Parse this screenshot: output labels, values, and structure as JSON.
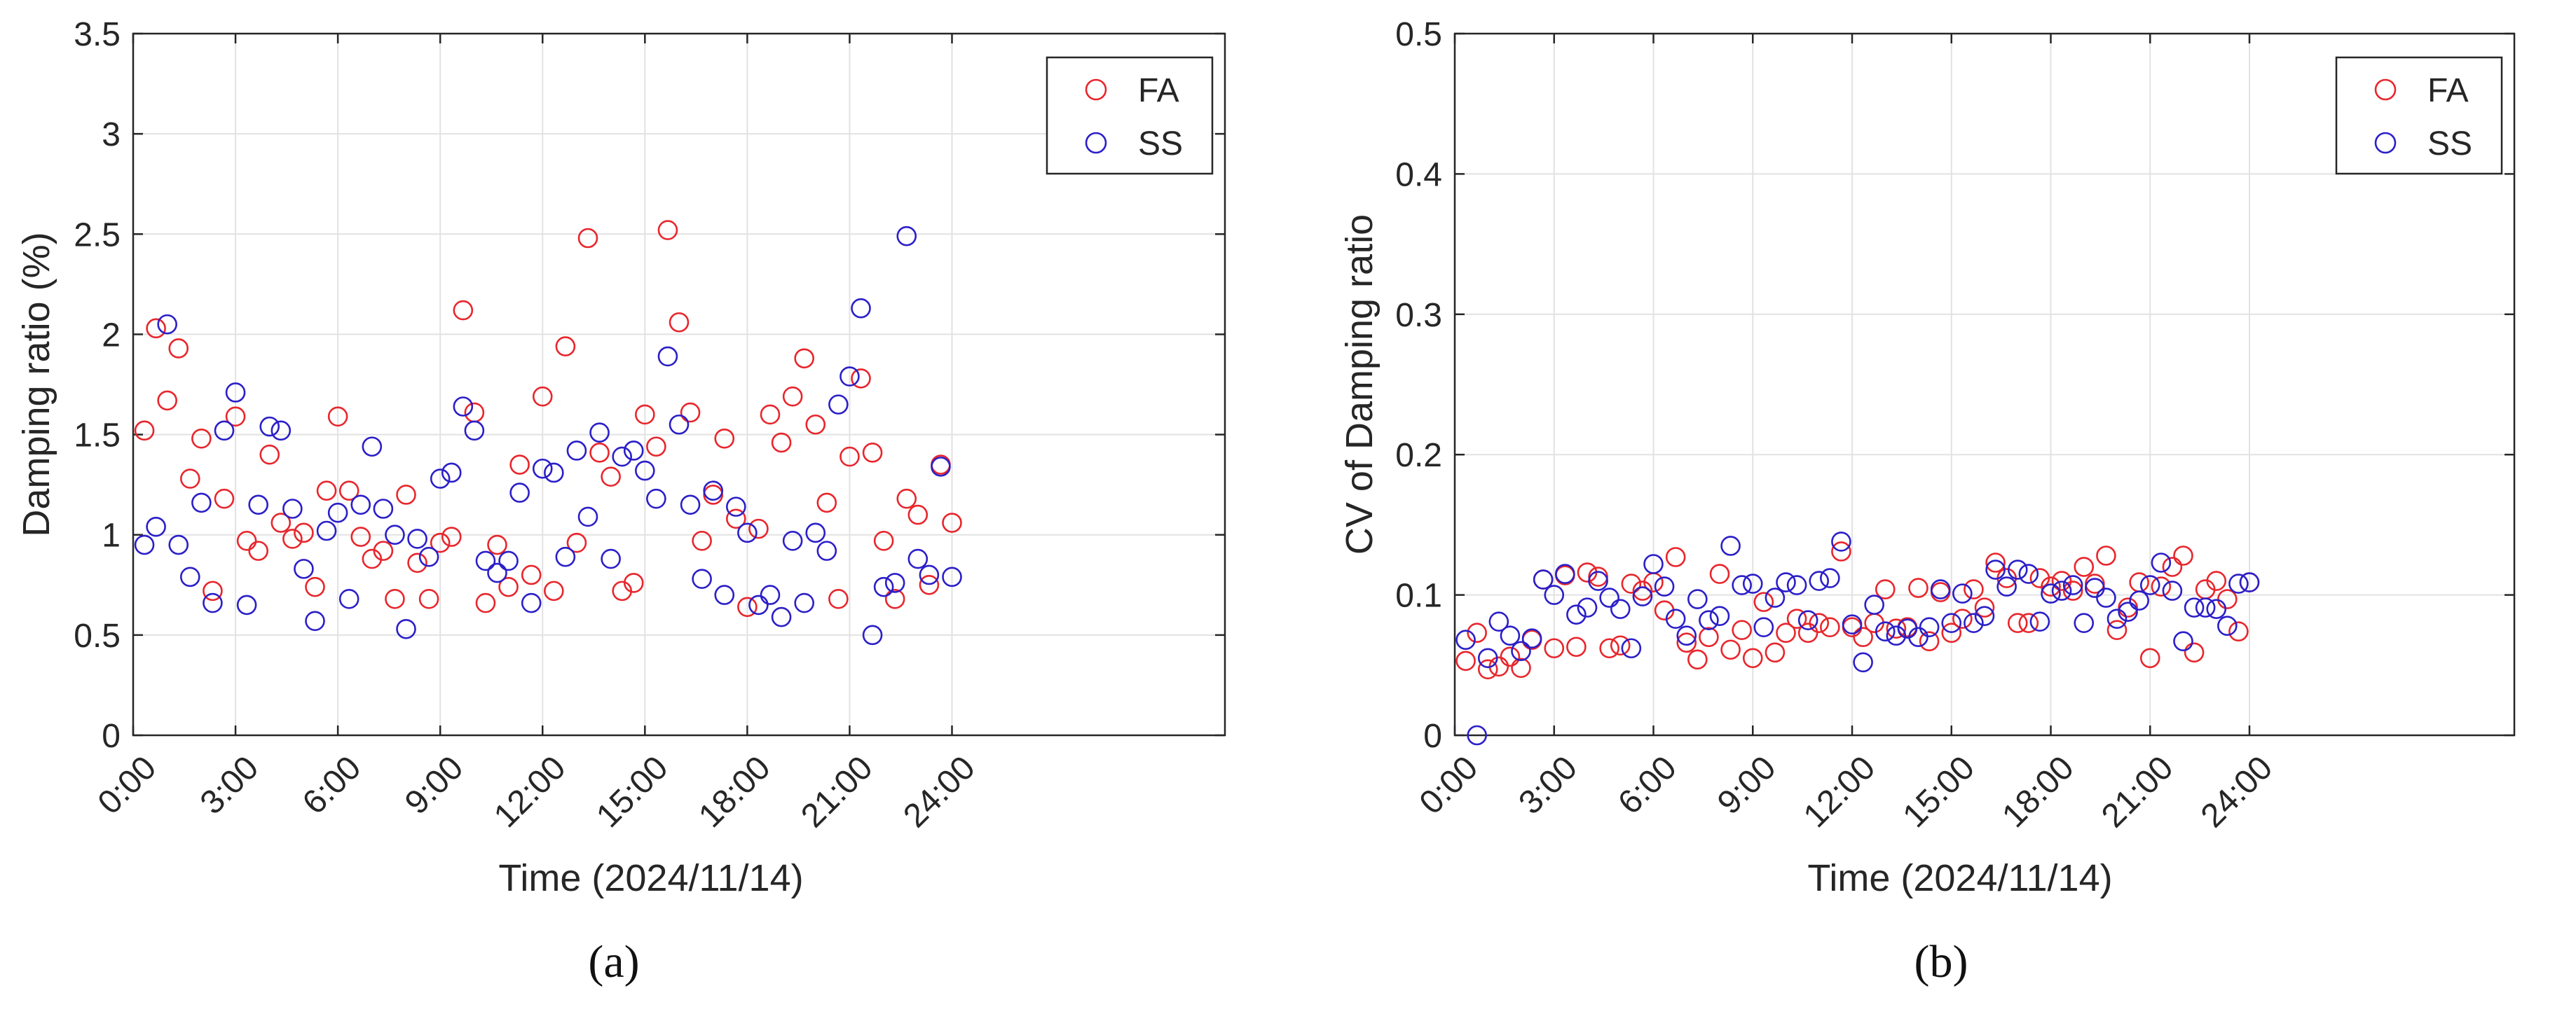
{
  "figure": {
    "colors": {
      "fa": "#e8262c",
      "ss": "#2b1fc8",
      "axis": "#262626",
      "grid": "#e2e2e2"
    }
  },
  "chart_data": [
    {
      "type": "scatter",
      "caption": "(a)",
      "xlabel": "Time (2024/11/14)",
      "ylabel": "Damping ratio (%)",
      "xlim": [
        0,
        32
      ],
      "ylim": [
        0,
        3.5
      ],
      "xticks": [
        0,
        3,
        6,
        9,
        12,
        15,
        18,
        21,
        24
      ],
      "xtick_labels": [
        "0:00",
        "3:00",
        "6:00",
        "9:00",
        "12:00",
        "15:00",
        "18:00",
        "21:00",
        "24:00"
      ],
      "yticks": [
        0,
        0.5,
        1,
        1.5,
        2,
        2.5,
        3,
        3.5
      ],
      "ytick_labels": [
        "0",
        "0.5",
        "1",
        "1.5",
        "2",
        "2.5",
        "3",
        "3.5"
      ],
      "grid": true,
      "legend_position": "top-right",
      "series": [
        {
          "name": "FA",
          "marker": "open-circle",
          "x": [
            0.33,
            0.67,
            1.0,
            1.33,
            1.67,
            2.0,
            2.33,
            2.67,
            3.0,
            3.33,
            3.67,
            4.0,
            4.33,
            4.67,
            5.0,
            5.33,
            5.67,
            6.0,
            6.33,
            6.67,
            7.0,
            7.33,
            7.67,
            8.0,
            8.33,
            8.67,
            9.0,
            9.33,
            9.67,
            10.0,
            10.33,
            10.67,
            11.0,
            11.33,
            11.67,
            12.0,
            12.33,
            12.67,
            13.0,
            13.33,
            13.67,
            14.0,
            14.33,
            14.67,
            15.0,
            15.33,
            15.67,
            16.0,
            16.33,
            16.67,
            17.0,
            17.33,
            17.67,
            18.0,
            18.33,
            18.67,
            19.0,
            19.33,
            19.67,
            20.0,
            20.33,
            20.67,
            21.0,
            21.33,
            21.67,
            22.0,
            22.33,
            22.67,
            23.0,
            23.33,
            23.67,
            24.0
          ],
          "y": [
            1.52,
            2.03,
            1.67,
            1.93,
            1.28,
            1.48,
            0.72,
            1.18,
            1.59,
            0.97,
            0.92,
            1.4,
            1.06,
            0.98,
            1.01,
            0.74,
            1.22,
            1.59,
            1.22,
            0.99,
            0.88,
            0.92,
            0.68,
            1.2,
            0.86,
            0.68,
            0.96,
            0.99,
            2.12,
            1.61,
            0.66,
            0.95,
            0.74,
            1.35,
            0.8,
            1.69,
            0.72,
            1.94,
            0.96,
            2.48,
            1.41,
            1.29,
            0.72,
            0.76,
            1.6,
            1.44,
            2.52,
            2.06,
            1.61,
            0.97,
            1.2,
            1.48,
            1.08,
            0.64,
            1.03,
            1.6,
            1.46,
            1.69,
            1.88,
            1.55,
            1.16,
            0.68,
            1.39,
            1.78,
            1.41,
            0.97,
            0.68,
            1.18,
            1.1,
            0.75,
            1.35,
            1.06
          ]
        },
        {
          "name": "SS",
          "marker": "open-circle",
          "x": [
            0.33,
            0.67,
            1.0,
            1.33,
            1.67,
            2.0,
            2.33,
            2.67,
            3.0,
            3.33,
            3.67,
            4.0,
            4.33,
            4.67,
            5.0,
            5.33,
            5.67,
            6.0,
            6.33,
            6.67,
            7.0,
            7.33,
            7.67,
            8.0,
            8.33,
            8.67,
            9.0,
            9.33,
            9.67,
            10.0,
            10.33,
            10.67,
            11.0,
            11.33,
            11.67,
            12.0,
            12.33,
            12.67,
            13.0,
            13.33,
            13.67,
            14.0,
            14.33,
            14.67,
            15.0,
            15.33,
            15.67,
            16.0,
            16.33,
            16.67,
            17.0,
            17.33,
            17.67,
            18.0,
            18.33,
            18.67,
            19.0,
            19.33,
            19.67,
            20.0,
            20.33,
            20.67,
            21.0,
            21.33,
            21.67,
            22.0,
            22.33,
            22.67,
            23.0,
            23.33,
            23.67,
            24.0
          ],
          "y": [
            0.95,
            1.04,
            2.05,
            0.95,
            0.79,
            1.16,
            0.66,
            1.52,
            1.71,
            0.65,
            1.15,
            1.54,
            1.52,
            1.13,
            0.83,
            0.57,
            1.02,
            1.11,
            0.68,
            1.15,
            1.44,
            1.13,
            1.0,
            0.53,
            0.98,
            0.89,
            1.28,
            1.31,
            1.64,
            1.52,
            0.87,
            0.81,
            0.87,
            1.21,
            0.66,
            1.33,
            1.31,
            0.89,
            1.42,
            1.09,
            1.51,
            0.88,
            1.39,
            1.42,
            1.32,
            1.18,
            1.89,
            1.55,
            1.15,
            0.78,
            1.22,
            0.7,
            1.14,
            1.01,
            0.65,
            0.7,
            0.59,
            0.97,
            0.66,
            1.01,
            0.92,
            1.65,
            1.79,
            2.13,
            0.5,
            0.74,
            0.76,
            2.49,
            0.88,
            0.8,
            1.34,
            0.79
          ]
        }
      ]
    },
    {
      "type": "scatter",
      "caption": "(b)",
      "xlabel": "Time (2024/11/14)",
      "ylabel": "CV of  Damping ratio",
      "xlim": [
        0,
        32
      ],
      "ylim": [
        0,
        0.5
      ],
      "xticks": [
        0,
        3,
        6,
        9,
        12,
        15,
        18,
        21,
        24
      ],
      "xtick_labels": [
        "0:00",
        "3:00",
        "6:00",
        "9:00",
        "12:00",
        "15:00",
        "18:00",
        "21:00",
        "24:00"
      ],
      "yticks": [
        0,
        0.1,
        0.2,
        0.3,
        0.4,
        0.5
      ],
      "ytick_labels": [
        "0",
        "0.1",
        "0.2",
        "0.3",
        "0.4",
        "0.5"
      ],
      "grid": true,
      "legend_position": "top-right",
      "series": [
        {
          "name": "FA",
          "marker": "open-circle",
          "x": [
            0.33,
            0.67,
            1.0,
            1.33,
            1.67,
            2.0,
            2.33,
            2.67,
            3.0,
            3.33,
            3.67,
            4.0,
            4.33,
            4.67,
            5.0,
            5.33,
            5.67,
            6.0,
            6.33,
            6.67,
            7.0,
            7.33,
            7.67,
            8.0,
            8.33,
            8.67,
            9.0,
            9.33,
            9.67,
            10.0,
            10.33,
            10.67,
            11.0,
            11.33,
            11.67,
            12.0,
            12.33,
            12.67,
            13.0,
            13.33,
            13.67,
            14.0,
            14.33,
            14.67,
            15.0,
            15.33,
            15.67,
            16.0,
            16.33,
            16.67,
            17.0,
            17.33,
            17.67,
            18.0,
            18.33,
            18.67,
            19.0,
            19.33,
            19.67,
            20.0,
            20.33,
            20.67,
            21.0,
            21.33,
            21.67,
            22.0,
            22.33,
            22.67,
            23.0,
            23.33,
            23.67,
            24.0
          ],
          "y": [
            0.053,
            0.073,
            0.047,
            0.049,
            0.056,
            0.048,
            0.068,
            0.111,
            0.062,
            0.114,
            0.063,
            0.116,
            0.113,
            0.062,
            0.064,
            0.108,
            0.103,
            0.109,
            0.089,
            0.127,
            0.066,
            0.054,
            0.07,
            0.115,
            0.061,
            0.075,
            0.055,
            0.095,
            0.059,
            0.073,
            0.083,
            0.073,
            0.08,
            0.077,
            0.131,
            0.077,
            0.07,
            0.08,
            0.104,
            0.076,
            0.077,
            0.105,
            0.067,
            0.102,
            0.073,
            0.083,
            0.104,
            0.091,
            0.123,
            0.112,
            0.08,
            0.08,
            0.112,
            0.106,
            0.11,
            0.103,
            0.12,
            0.108,
            0.128,
            0.075,
            0.091,
            0.109,
            0.055,
            0.106,
            0.12,
            0.128,
            0.059,
            0.104,
            0.11,
            0.097,
            0.074,
            0.109
          ]
        },
        {
          "name": "SS",
          "marker": "open-circle",
          "x": [
            0.33,
            0.67,
            1.0,
            1.33,
            1.67,
            2.0,
            2.33,
            2.67,
            3.0,
            3.33,
            3.67,
            4.0,
            4.33,
            4.67,
            5.0,
            5.33,
            5.67,
            6.0,
            6.33,
            6.67,
            7.0,
            7.33,
            7.67,
            8.0,
            8.33,
            8.67,
            9.0,
            9.33,
            9.67,
            10.0,
            10.33,
            10.67,
            11.0,
            11.33,
            11.67,
            12.0,
            12.33,
            12.67,
            13.0,
            13.33,
            13.67,
            14.0,
            14.33,
            14.67,
            15.0,
            15.33,
            15.67,
            16.0,
            16.33,
            16.67,
            17.0,
            17.33,
            17.67,
            18.0,
            18.33,
            18.67,
            19.0,
            19.33,
            19.67,
            20.0,
            20.33,
            20.67,
            21.0,
            21.33,
            21.67,
            22.0,
            22.33,
            22.67,
            23.0,
            23.33,
            23.67,
            24.0
          ],
          "y": [
            0.068,
            0.0,
            0.055,
            0.081,
            0.071,
            0.06,
            0.069,
            0.111,
            0.1,
            0.115,
            0.086,
            0.091,
            0.11,
            0.098,
            0.09,
            0.062,
            0.099,
            0.122,
            0.106,
            0.083,
            0.071,
            0.097,
            0.082,
            0.085,
            0.135,
            0.107,
            0.108,
            0.077,
            0.098,
            0.109,
            0.107,
            0.082,
            0.11,
            0.112,
            0.138,
            0.079,
            0.052,
            0.093,
            0.074,
            0.071,
            0.076,
            0.07,
            0.077,
            0.104,
            0.08,
            0.101,
            0.08,
            0.085,
            0.118,
            0.106,
            0.118,
            0.115,
            0.081,
            0.101,
            0.103,
            0.107,
            0.08,
            0.105,
            0.098,
            0.083,
            0.088,
            0.096,
            0.107,
            0.123,
            0.103,
            0.067,
            0.091,
            0.091,
            0.09,
            0.078,
            0.108,
            0.109
          ]
        }
      ]
    }
  ]
}
